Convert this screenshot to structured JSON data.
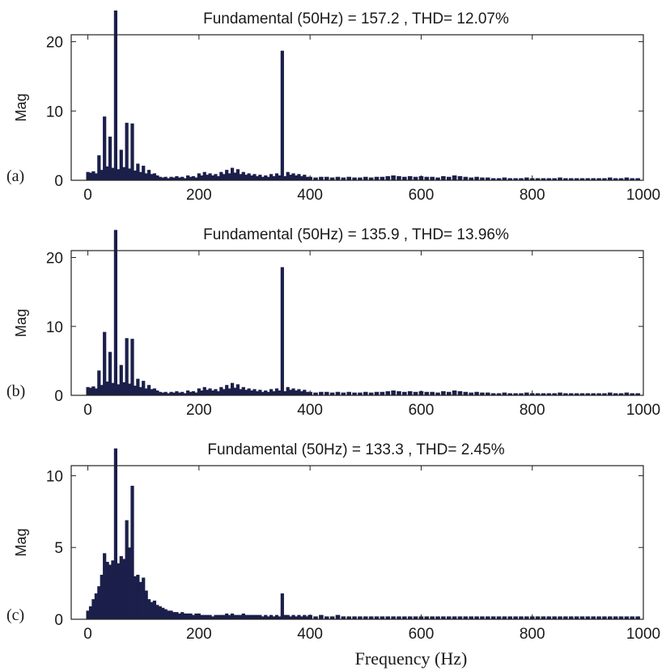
{
  "figure": {
    "xlabel": "Frequency (Hz)",
    "bar_color": "#1b1f4a",
    "axis_color": "#222222",
    "background": "#ffffff"
  },
  "chart_data": [
    {
      "type": "bar",
      "panel_label": "(a)",
      "title": "Fundamental (50Hz) = 157.2 , THD= 12.07%",
      "xlabel": "",
      "ylabel": "Mag",
      "xlim": [
        -30,
        1000
      ],
      "ylim": [
        0,
        21
      ],
      "xticks": [
        0,
        200,
        400,
        600,
        800,
        1000
      ],
      "yticks": [
        0,
        10,
        20
      ],
      "grid": false,
      "x": [
        0,
        5,
        10,
        15,
        20,
        25,
        30,
        35,
        40,
        45,
        50,
        55,
        60,
        65,
        70,
        75,
        80,
        85,
        90,
        95,
        100,
        105,
        110,
        115,
        120,
        125,
        130,
        135,
        140,
        145,
        150,
        155,
        160,
        165,
        170,
        175,
        180,
        185,
        190,
        195,
        200,
        205,
        210,
        215,
        220,
        225,
        230,
        235,
        240,
        245,
        250,
        255,
        260,
        265,
        270,
        275,
        280,
        285,
        290,
        295,
        300,
        305,
        310,
        315,
        320,
        325,
        330,
        335,
        340,
        345,
        350,
        355,
        360,
        365,
        370,
        375,
        380,
        385,
        390,
        395,
        400,
        410,
        420,
        430,
        440,
        450,
        460,
        470,
        480,
        490,
        500,
        510,
        520,
        530,
        540,
        550,
        560,
        570,
        580,
        590,
        600,
        610,
        620,
        630,
        640,
        650,
        660,
        670,
        680,
        690,
        700,
        710,
        720,
        730,
        740,
        750,
        760,
        770,
        780,
        790,
        800,
        810,
        820,
        830,
        840,
        850,
        860,
        870,
        880,
        890,
        900,
        910,
        920,
        930,
        940,
        950,
        960,
        970,
        980,
        990
      ],
      "values": [
        1.2,
        1.1,
        1.3,
        1.0,
        3.6,
        1.5,
        9.2,
        2.0,
        6.3,
        1.8,
        24.5,
        1.6,
        4.4,
        1.9,
        8.3,
        1.7,
        8.2,
        1.4,
        2.4,
        1.2,
        2.1,
        1.0,
        1.5,
        0.9,
        1.0,
        0.7,
        0.5,
        0.4,
        0.5,
        0.3,
        0.5,
        0.4,
        0.6,
        0.4,
        0.5,
        0.3,
        0.7,
        0.5,
        0.6,
        0.4,
        1.0,
        0.7,
        1.2,
        0.8,
        1.0,
        0.7,
        0.9,
        0.6,
        1.2,
        0.9,
        1.5,
        1.0,
        1.8,
        1.1,
        1.6,
        0.9,
        1.2,
        0.8,
        1.0,
        0.7,
        0.9,
        0.6,
        0.8,
        0.5,
        0.7,
        0.5,
        0.9,
        0.6,
        1.0,
        0.7,
        18.7,
        0.6,
        1.2,
        0.8,
        1.0,
        0.7,
        0.9,
        0.6,
        0.8,
        0.5,
        0.5,
        0.4,
        0.5,
        0.5,
        0.4,
        0.5,
        0.4,
        0.5,
        0.4,
        0.4,
        0.5,
        0.4,
        0.5,
        0.5,
        0.6,
        0.7,
        0.6,
        0.5,
        0.6,
        0.5,
        0.6,
        0.5,
        0.5,
        0.4,
        0.6,
        0.5,
        0.7,
        0.6,
        0.5,
        0.4,
        0.5,
        0.4,
        0.4,
        0.3,
        0.3,
        0.4,
        0.3,
        0.3,
        0.3,
        0.4,
        0.3,
        0.3,
        0.3,
        0.3,
        0.3,
        0.4,
        0.3,
        0.3,
        0.3,
        0.3,
        0.3,
        0.3,
        0.3,
        0.3,
        0.4,
        0.3,
        0.3,
        0.4,
        0.3,
        0.3
      ]
    },
    {
      "type": "bar",
      "panel_label": "(b)",
      "title": "Fundamental (50Hz) = 135.9 , THD= 13.96%",
      "xlabel": "",
      "ylabel": "Mag",
      "xlim": [
        -30,
        1000
      ],
      "ylim": [
        0,
        21
      ],
      "xticks": [
        0,
        200,
        400,
        600,
        800,
        1000
      ],
      "yticks": [
        0,
        10,
        20
      ],
      "grid": false,
      "x": [
        0,
        5,
        10,
        15,
        20,
        25,
        30,
        35,
        40,
        45,
        50,
        55,
        60,
        65,
        70,
        75,
        80,
        85,
        90,
        95,
        100,
        105,
        110,
        115,
        120,
        125,
        130,
        135,
        140,
        145,
        150,
        155,
        160,
        165,
        170,
        175,
        180,
        185,
        190,
        195,
        200,
        205,
        210,
        215,
        220,
        225,
        230,
        235,
        240,
        245,
        250,
        255,
        260,
        265,
        270,
        275,
        280,
        285,
        290,
        295,
        300,
        305,
        310,
        315,
        320,
        325,
        330,
        335,
        340,
        345,
        350,
        355,
        360,
        365,
        370,
        375,
        380,
        385,
        390,
        395,
        400,
        410,
        420,
        430,
        440,
        450,
        460,
        470,
        480,
        490,
        500,
        510,
        520,
        530,
        540,
        550,
        560,
        570,
        580,
        590,
        600,
        610,
        620,
        630,
        640,
        650,
        660,
        670,
        680,
        690,
        700,
        710,
        720,
        730,
        740,
        750,
        760,
        770,
        780,
        790,
        800,
        810,
        820,
        830,
        840,
        850,
        860,
        870,
        880,
        890,
        900,
        910,
        920,
        930,
        940,
        950,
        960,
        970,
        980,
        990
      ],
      "values": [
        1.2,
        1.1,
        1.3,
        1.0,
        3.6,
        1.5,
        9.2,
        2.0,
        6.3,
        1.8,
        24.0,
        1.6,
        4.4,
        1.9,
        8.3,
        1.7,
        8.2,
        1.4,
        2.4,
        1.2,
        2.1,
        1.0,
        1.5,
        0.9,
        1.0,
        0.7,
        0.5,
        0.4,
        0.5,
        0.3,
        0.5,
        0.4,
        0.6,
        0.4,
        0.5,
        0.3,
        0.7,
        0.5,
        0.6,
        0.4,
        1.0,
        0.7,
        1.2,
        0.8,
        1.0,
        0.7,
        0.9,
        0.6,
        1.2,
        0.9,
        1.5,
        1.0,
        1.8,
        1.1,
        1.6,
        0.9,
        1.2,
        0.8,
        1.0,
        0.7,
        0.9,
        0.6,
        0.8,
        0.5,
        0.7,
        0.5,
        0.9,
        0.6,
        1.0,
        0.7,
        18.6,
        0.6,
        1.2,
        0.8,
        1.0,
        0.7,
        0.9,
        0.6,
        0.8,
        0.5,
        0.5,
        0.4,
        0.5,
        0.5,
        0.4,
        0.5,
        0.4,
        0.5,
        0.4,
        0.4,
        0.5,
        0.4,
        0.5,
        0.5,
        0.6,
        0.7,
        0.6,
        0.5,
        0.6,
        0.5,
        0.6,
        0.5,
        0.5,
        0.4,
        0.6,
        0.5,
        0.7,
        0.6,
        0.5,
        0.4,
        0.5,
        0.4,
        0.4,
        0.3,
        0.3,
        0.4,
        0.3,
        0.3,
        0.3,
        0.4,
        0.3,
        0.3,
        0.3,
        0.3,
        0.3,
        0.4,
        0.3,
        0.3,
        0.3,
        0.3,
        0.3,
        0.3,
        0.3,
        0.3,
        0.4,
        0.3,
        0.3,
        0.4,
        0.3,
        0.3
      ]
    },
    {
      "type": "bar",
      "panel_label": "(c)",
      "title": "Fundamental (50Hz) = 133.3 , THD= 2.45%",
      "xlabel": "Frequency (Hz)",
      "ylabel": "Mag",
      "xlim": [
        -30,
        1000
      ],
      "ylim": [
        0,
        10.7
      ],
      "xticks": [
        0,
        200,
        400,
        600,
        800,
        1000
      ],
      "yticks": [
        0,
        5,
        10
      ],
      "grid": false,
      "x": [
        0,
        5,
        10,
        15,
        20,
        25,
        30,
        35,
        40,
        45,
        50,
        55,
        60,
        65,
        70,
        75,
        80,
        85,
        90,
        95,
        100,
        105,
        110,
        115,
        120,
        125,
        130,
        135,
        140,
        145,
        150,
        155,
        160,
        165,
        170,
        175,
        180,
        185,
        190,
        195,
        200,
        205,
        210,
        215,
        220,
        225,
        230,
        235,
        240,
        245,
        250,
        255,
        260,
        265,
        270,
        275,
        280,
        285,
        290,
        295,
        300,
        305,
        310,
        315,
        320,
        325,
        330,
        335,
        340,
        345,
        350,
        355,
        360,
        365,
        370,
        375,
        380,
        385,
        390,
        395,
        400,
        410,
        420,
        430,
        440,
        450,
        460,
        470,
        480,
        490,
        500,
        510,
        520,
        530,
        540,
        550,
        560,
        570,
        580,
        590,
        600,
        610,
        620,
        630,
        640,
        650,
        660,
        670,
        680,
        690,
        700,
        710,
        720,
        730,
        740,
        750,
        760,
        770,
        780,
        790,
        800,
        810,
        820,
        830,
        840,
        850,
        860,
        870,
        880,
        890,
        900,
        910,
        920,
        930,
        940,
        950,
        960,
        970,
        980,
        990
      ],
      "values": [
        0.6,
        0.9,
        1.4,
        1.8,
        2.3,
        3.1,
        4.6,
        4.0,
        3.8,
        4.1,
        11.9,
        3.9,
        4.4,
        4.2,
        6.9,
        5.0,
        9.3,
        3.0,
        3.1,
        2.6,
        2.9,
        2.0,
        1.4,
        1.2,
        1.3,
        1.0,
        0.9,
        0.8,
        0.7,
        0.6,
        0.6,
        0.5,
        0.5,
        0.4,
        0.5,
        0.4,
        0.4,
        0.4,
        0.3,
        0.4,
        0.4,
        0.3,
        0.3,
        0.3,
        0.3,
        0.2,
        0.3,
        0.3,
        0.3,
        0.3,
        0.4,
        0.3,
        0.4,
        0.3,
        0.3,
        0.3,
        0.4,
        0.3,
        0.3,
        0.3,
        0.3,
        0.3,
        0.3,
        0.2,
        0.3,
        0.2,
        0.3,
        0.2,
        0.3,
        0.2,
        1.8,
        0.3,
        0.3,
        0.2,
        0.3,
        0.2,
        0.3,
        0.2,
        0.3,
        0.2,
        0.3,
        0.2,
        0.3,
        0.2,
        0.2,
        0.3,
        0.2,
        0.2,
        0.2,
        0.2,
        0.2,
        0.2,
        0.2,
        0.2,
        0.2,
        0.2,
        0.2,
        0.2,
        0.2,
        0.2,
        0.2,
        0.2,
        0.2,
        0.2,
        0.2,
        0.2,
        0.2,
        0.2,
        0.2,
        0.2,
        0.2,
        0.2,
        0.2,
        0.2,
        0.2,
        0.2,
        0.2,
        0.2,
        0.2,
        0.2,
        0.2,
        0.2,
        0.2,
        0.2,
        0.2,
        0.2,
        0.2,
        0.2,
        0.2,
        0.2,
        0.2,
        0.2,
        0.2,
        0.2,
        0.2,
        0.2,
        0.2,
        0.2,
        0.2,
        0.2
      ]
    }
  ]
}
